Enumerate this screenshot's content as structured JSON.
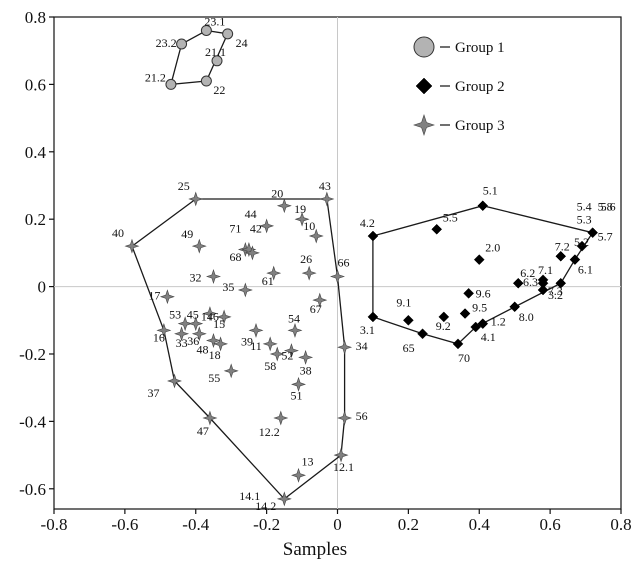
{
  "chart_data": {
    "type": "scatter",
    "xlabel": "Samples",
    "ylabel": "",
    "xlim": [
      -0.8,
      0.8
    ],
    "ylim": [
      -0.66,
      0.8
    ],
    "xticks": [
      "-0.8",
      "-0.6",
      "-0.4",
      "-0.2",
      "0",
      "0.2",
      "0.4",
      "0.6",
      "0.8"
    ],
    "yticks": [
      "0.8",
      "0.6",
      "0.4",
      "0.2",
      "0",
      "-0.2",
      "-0.4",
      "-0.6"
    ],
    "legend_position": "top-right",
    "colors": {
      "group1": "#b3b3b3",
      "group2": "#000000",
      "group3": "#808080",
      "hull": "#1a1a1a",
      "zero_line": "#c8c8c8"
    },
    "series": [
      {
        "name": "Group 1",
        "marker": "circle",
        "hull": [
          "21.2",
          "23.2",
          "23.1",
          "24",
          "22"
        ],
        "points": [
          {
            "label": "23.2",
            "x": -0.44,
            "y": 0.72
          },
          {
            "label": "23.1",
            "x": -0.37,
            "y": 0.76
          },
          {
            "label": "24",
            "x": -0.31,
            "y": 0.75
          },
          {
            "label": "21.1",
            "x": -0.34,
            "y": 0.67
          },
          {
            "label": "21.2",
            "x": -0.47,
            "y": 0.6
          },
          {
            "label": "22",
            "x": -0.37,
            "y": 0.61
          }
        ]
      },
      {
        "name": "Group 2",
        "marker": "diamond",
        "hull": [
          "4.2",
          "5.1",
          "5.8",
          "6.1",
          "7.3",
          "4.1",
          "70",
          "65",
          "3.1"
        ],
        "points": [
          {
            "label": "5.1",
            "x": 0.41,
            "y": 0.24
          },
          {
            "label": "4.2",
            "x": 0.1,
            "y": 0.15
          },
          {
            "label": "5.5",
            "x": 0.28,
            "y": 0.17
          },
          {
            "label": "2.0",
            "x": 0.4,
            "y": 0.08
          },
          {
            "label": "5.8",
            "x": 0.72,
            "y": 0.16
          },
          {
            "label": "5.4",
            "x": 0.72,
            "y": 0.16
          },
          {
            "label": "5.6",
            "x": 0.72,
            "y": 0.16
          },
          {
            "label": "5.3",
            "x": 0.72,
            "y": 0.16
          },
          {
            "label": "5.7",
            "x": 0.72,
            "y": 0.16
          },
          {
            "label": "5.2",
            "x": 0.69,
            "y": 0.12
          },
          {
            "label": "7.2",
            "x": 0.63,
            "y": 0.09
          },
          {
            "label": "6.1",
            "x": 0.67,
            "y": 0.08
          },
          {
            "label": "6.2",
            "x": 0.51,
            "y": 0.01
          },
          {
            "label": "7.1",
            "x": 0.58,
            "y": 0.02
          },
          {
            "label": "6.3",
            "x": 0.58,
            "y": 0.01
          },
          {
            "label": "7.3",
            "x": 0.63,
            "y": 0.01
          },
          {
            "label": "3.2",
            "x": 0.58,
            "y": -0.01
          },
          {
            "label": "9.6",
            "x": 0.37,
            "y": -0.02
          },
          {
            "label": "8.0",
            "x": 0.5,
            "y": -0.06
          },
          {
            "label": "9.5",
            "x": 0.36,
            "y": -0.08
          },
          {
            "label": "9.1",
            "x": 0.2,
            "y": -0.1
          },
          {
            "label": "9.2",
            "x": 0.3,
            "y": -0.09
          },
          {
            "label": "1.2",
            "x": 0.41,
            "y": -0.11
          },
          {
            "label": "4.1",
            "x": 0.39,
            "y": -0.12
          },
          {
            "label": "3.1",
            "x": 0.1,
            "y": -0.09
          },
          {
            "label": "65",
            "x": 0.24,
            "y": -0.14
          },
          {
            "label": "70",
            "x": 0.34,
            "y": -0.17
          }
        ]
      },
      {
        "name": "Group 3",
        "marker": "star",
        "hull": [
          "25",
          "43",
          "66",
          "34",
          "56",
          "12.1",
          "14.2",
          "47",
          "37",
          "16",
          "40"
        ],
        "points": [
          {
            "label": "25",
            "x": -0.4,
            "y": 0.26
          },
          {
            "label": "20",
            "x": -0.15,
            "y": 0.24
          },
          {
            "label": "43",
            "x": -0.03,
            "y": 0.26
          },
          {
            "label": "44",
            "x": -0.2,
            "y": 0.18
          },
          {
            "label": "19",
            "x": -0.1,
            "y": 0.2
          },
          {
            "label": "10",
            "x": -0.06,
            "y": 0.15
          },
          {
            "label": "40",
            "x": -0.58,
            "y": 0.12
          },
          {
            "label": "49",
            "x": -0.39,
            "y": 0.12
          },
          {
            "label": "71",
            "x": -0.26,
            "y": 0.11
          },
          {
            "label": "42",
            "x": -0.25,
            "y": 0.11
          },
          {
            "label": "68",
            "x": -0.24,
            "y": 0.1
          },
          {
            "label": "61",
            "x": -0.18,
            "y": 0.04
          },
          {
            "label": "26",
            "x": -0.08,
            "y": 0.04
          },
          {
            "label": "66",
            "x": 0.0,
            "y": 0.03
          },
          {
            "label": "32",
            "x": -0.35,
            "y": 0.03
          },
          {
            "label": "35",
            "x": -0.26,
            "y": -0.01
          },
          {
            "label": "17",
            "x": -0.48,
            "y": -0.03
          },
          {
            "label": "67",
            "x": -0.05,
            "y": -0.04
          },
          {
            "label": "53",
            "x": -0.43,
            "y": -0.11
          },
          {
            "label": "45",
            "x": -0.4,
            "y": -0.11
          },
          {
            "label": "146",
            "x": -0.36,
            "y": -0.08
          },
          {
            "label": "15",
            "x": -0.32,
            "y": -0.09
          },
          {
            "label": "16",
            "x": -0.49,
            "y": -0.13
          },
          {
            "label": "33",
            "x": -0.44,
            "y": -0.14
          },
          {
            "label": "36",
            "x": -0.39,
            "y": -0.14
          },
          {
            "label": "39",
            "x": -0.23,
            "y": -0.13
          },
          {
            "label": "54",
            "x": -0.12,
            "y": -0.13
          },
          {
            "label": "48",
            "x": -0.35,
            "y": -0.16
          },
          {
            "label": "18",
            "x": -0.33,
            "y": -0.17
          },
          {
            "label": "11",
            "x": -0.19,
            "y": -0.17
          },
          {
            "label": "58",
            "x": -0.17,
            "y": -0.2
          },
          {
            "label": "52",
            "x": -0.13,
            "y": -0.19
          },
          {
            "label": "38",
            "x": -0.09,
            "y": -0.21
          },
          {
            "label": "34",
            "x": 0.02,
            "y": -0.18
          },
          {
            "label": "55",
            "x": -0.3,
            "y": -0.25
          },
          {
            "label": "51",
            "x": -0.11,
            "y": -0.29
          },
          {
            "label": "37",
            "x": -0.46,
            "y": -0.28
          },
          {
            "label": "12.2",
            "x": -0.16,
            "y": -0.39
          },
          {
            "label": "47",
            "x": -0.36,
            "y": -0.39
          },
          {
            "label": "56",
            "x": 0.02,
            "y": -0.39
          },
          {
            "label": "13",
            "x": -0.11,
            "y": -0.56
          },
          {
            "label": "12.1",
            "x": 0.01,
            "y": -0.5
          },
          {
            "label": "14.1",
            "x": -0.15,
            "y": -0.63
          },
          {
            "label": "14.2",
            "x": -0.15,
            "y": -0.63
          }
        ]
      }
    ]
  }
}
